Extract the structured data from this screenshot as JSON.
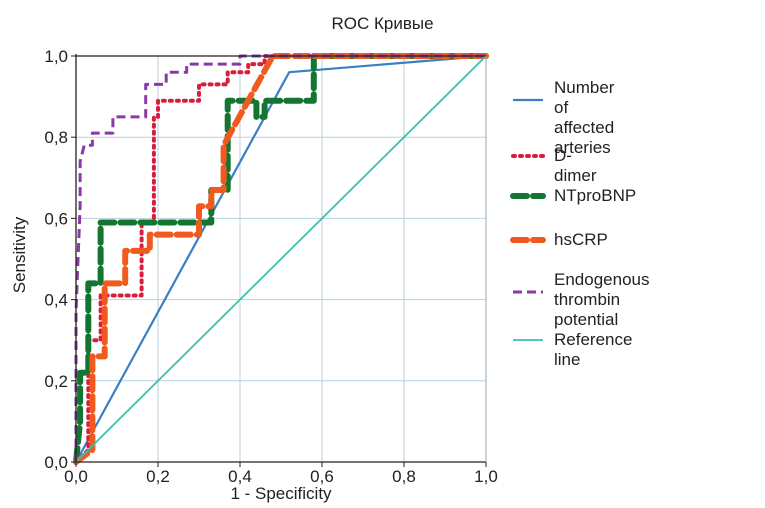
{
  "chart_data": {
    "type": "line",
    "title": "ROC  Кривые",
    "xlabel": "1 - Specificity",
    "ylabel": "Sensitivity",
    "xlim": [
      0,
      1
    ],
    "ylim": [
      0,
      1
    ],
    "xticks": [
      "0,0",
      "0,2",
      "0,4",
      "0,6",
      "0,8",
      "1,0"
    ],
    "yticks": [
      "0,0",
      "0,2",
      "0,4",
      "0,6",
      "0,8",
      "1,0"
    ],
    "grid": true,
    "legend_position": "right",
    "series": [
      {
        "name": "Number\nof affected arteries",
        "color": "#3a7fc4",
        "style": "solid",
        "x": [
          0,
          0.52,
          1.0
        ],
        "y": [
          0,
          0.96,
          1.0
        ]
      },
      {
        "name": "D-dimer",
        "color": "#d81e3c",
        "style": "dotted",
        "x": [
          0,
          0.03,
          0.03,
          0.06,
          0.06,
          0.16,
          0.16,
          0.19,
          0.19,
          0.2,
          0.2,
          0.3,
          0.3,
          0.37,
          0.37,
          0.42,
          0.42,
          0.46,
          0.46,
          1.0
        ],
        "y": [
          0,
          0.03,
          0.3,
          0.3,
          0.41,
          0.41,
          0.59,
          0.59,
          0.85,
          0.85,
          0.89,
          0.89,
          0.93,
          0.93,
          0.96,
          0.96,
          0.98,
          0.98,
          1.0,
          1.0
        ],
        "step": true
      },
      {
        "name": "NTproBNP",
        "color": "#127530",
        "style": "dashed-thick",
        "x": [
          0,
          0.01,
          0.01,
          0.03,
          0.03,
          0.06,
          0.06,
          0.33,
          0.33,
          0.37,
          0.37,
          0.44,
          0.44,
          0.46,
          0.46,
          0.58,
          0.58,
          1.0
        ],
        "y": [
          0,
          0.1,
          0.22,
          0.22,
          0.44,
          0.44,
          0.59,
          0.59,
          0.67,
          0.67,
          0.89,
          0.89,
          0.85,
          0.85,
          0.89,
          0.89,
          1.0,
          1.0
        ]
      },
      {
        "name": "hsCRP",
        "color": "#f05a1e",
        "style": "dashed-thick",
        "x": [
          0,
          0.04,
          0.04,
          0.07,
          0.07,
          0.12,
          0.12,
          0.18,
          0.18,
          0.3,
          0.3,
          0.33,
          0.33,
          0.36,
          0.36,
          0.48,
          1.0
        ],
        "y": [
          0,
          0.03,
          0.26,
          0.26,
          0.44,
          0.44,
          0.52,
          0.52,
          0.56,
          0.56,
          0.63,
          0.63,
          0.67,
          0.67,
          0.78,
          1.0,
          1.0
        ]
      },
      {
        "name": "Endogenous thrombin\npotential",
        "color": "#8a3aa8",
        "style": "dashed",
        "x": [
          0,
          0.0,
          0.01,
          0.01,
          0.02,
          0.04,
          0.04,
          0.09,
          0.09,
          0.17,
          0.17,
          0.22,
          0.22,
          0.27,
          0.27,
          0.4,
          0.4,
          1.0
        ],
        "y": [
          0,
          0.37,
          0.63,
          0.74,
          0.78,
          0.78,
          0.81,
          0.81,
          0.85,
          0.85,
          0.93,
          0.93,
          0.96,
          0.96,
          0.98,
          0.98,
          1.0,
          1.0
        ]
      },
      {
        "name": "Reference line",
        "color": "#3cbfb2",
        "style": "solid-thin",
        "x": [
          0,
          1.0
        ],
        "y": [
          0,
          1.0
        ]
      }
    ]
  }
}
